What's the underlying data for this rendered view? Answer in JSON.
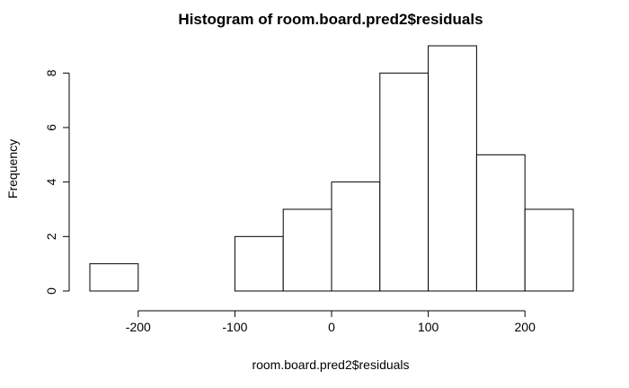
{
  "chart_data": {
    "type": "bar",
    "title": "Histogram of room.board.pred2$residuals",
    "xlabel": "room.board.pred2$residuals",
    "ylabel": "Frequency",
    "bins": [
      {
        "from": -250,
        "to": -200,
        "count": 1
      },
      {
        "from": -200,
        "to": -150,
        "count": 0
      },
      {
        "from": -150,
        "to": -100,
        "count": 0
      },
      {
        "from": -100,
        "to": -50,
        "count": 2
      },
      {
        "from": -50,
        "to": 0,
        "count": 3
      },
      {
        "from": 0,
        "to": 50,
        "count": 4
      },
      {
        "from": 50,
        "to": 100,
        "count": 8
      },
      {
        "from": 100,
        "to": 150,
        "count": 9
      },
      {
        "from": 150,
        "to": 200,
        "count": 5
      },
      {
        "from": 200,
        "to": 250,
        "count": 3
      }
    ],
    "xticks": [
      -200,
      -100,
      0,
      100,
      200
    ],
    "yticks": [
      0,
      2,
      4,
      6,
      8
    ],
    "xlim": [
      -250,
      250
    ],
    "ylim": [
      0,
      9
    ],
    "grid": false,
    "legend": "none"
  }
}
